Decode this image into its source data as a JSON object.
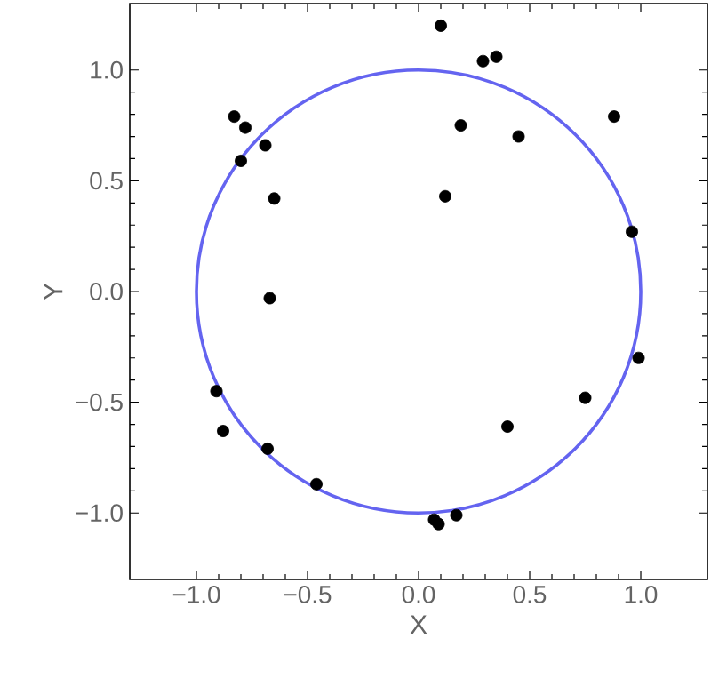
{
  "chart_data": {
    "type": "scatter",
    "xlabel": "X",
    "ylabel": "Y",
    "xlim": [
      -1.3,
      1.3
    ],
    "ylim": [
      -1.3,
      1.3
    ],
    "xticks": [
      {
        "value": -1,
        "label": "−1.0"
      },
      {
        "value": -0.5,
        "label": "−0.5"
      },
      {
        "value": 0,
        "label": "0.0"
      },
      {
        "value": 0.5,
        "label": "0.5"
      },
      {
        "value": 1,
        "label": "1.0"
      }
    ],
    "yticks": [
      {
        "value": -1,
        "label": "−1.0"
      },
      {
        "value": -0.5,
        "label": "−0.5"
      },
      {
        "value": 0,
        "label": "0.0"
      },
      {
        "value": 0.5,
        "label": "0.5"
      },
      {
        "value": 1,
        "label": "1.0"
      }
    ],
    "series": [
      {
        "color": "#000000",
        "marker": "circle",
        "x": [
          -0.83,
          -0.78,
          -0.69,
          -0.8,
          -0.65,
          -0.67,
          0.1,
          0.29,
          0.35,
          0.88,
          0.19,
          0.45,
          0.12,
          0.96,
          0.99,
          -0.91,
          -0.88,
          -0.68,
          -0.46,
          0.75,
          0.4,
          0.07,
          0.09,
          0.17
        ],
        "values": [
          0.79,
          0.74,
          0.66,
          0.59,
          0.42,
          -0.03,
          1.2,
          1.04,
          1.06,
          0.79,
          0.75,
          0.7,
          0.43,
          0.27,
          -0.3,
          -0.45,
          -0.63,
          -0.71,
          -0.87,
          -0.48,
          -0.61,
          -1.03,
          -1.05,
          -1.01
        ]
      }
    ]
  }
}
